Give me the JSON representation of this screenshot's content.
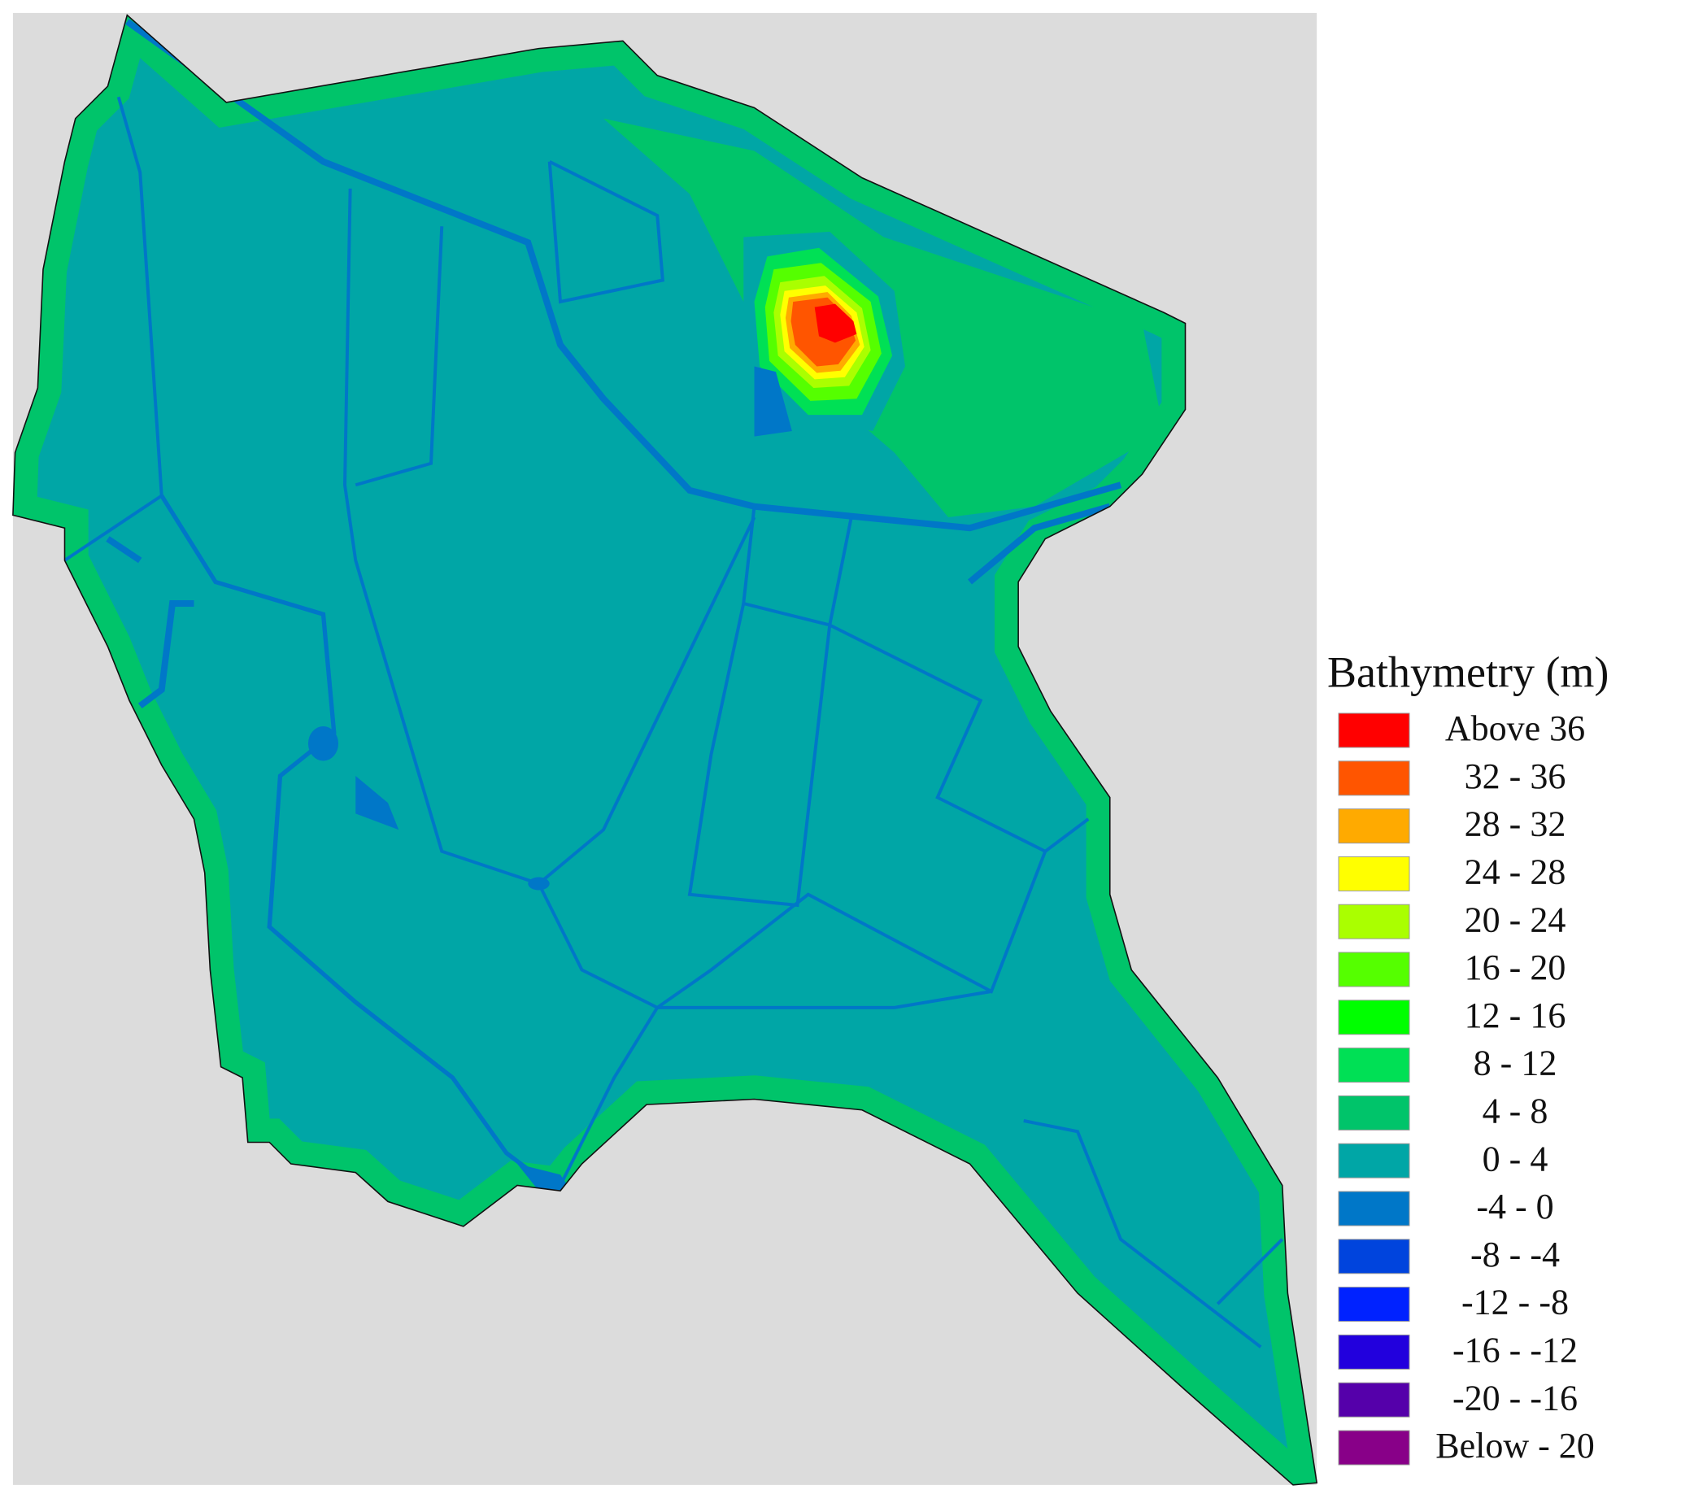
{
  "legend": {
    "title": "Bathymetry (m)",
    "items": [
      {
        "label": "Above 36",
        "color": "#ff0000"
      },
      {
        "label": "32 - 36",
        "color": "#ff5500"
      },
      {
        "label": "28 - 32",
        "color": "#ffaa00"
      },
      {
        "label": "24 - 28",
        "color": "#ffff00"
      },
      {
        "label": "20 - 24",
        "color": "#aaff00"
      },
      {
        "label": "16 - 20",
        "color": "#55ff00"
      },
      {
        "label": "12 - 16",
        "color": "#00ff00"
      },
      {
        "label": "8 - 12",
        "color": "#00e055"
      },
      {
        "label": "4 - 8",
        "color": "#00c46a"
      },
      {
        "label": "0 - 4",
        "color": "#00a6a6"
      },
      {
        "label": "-4 - 0",
        "color": "#0077c8"
      },
      {
        "label": "-8 - -4",
        "color": "#0044dd"
      },
      {
        "label": "-12 - -8",
        "color": "#0022ff"
      },
      {
        "label": "-16 - -12",
        "color": "#2200dd"
      },
      {
        "label": "-20 - -16",
        "color": "#5500aa"
      },
      {
        "label": "Below - 20",
        "color": "#880088"
      }
    ]
  }
}
